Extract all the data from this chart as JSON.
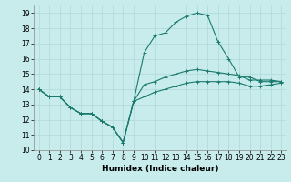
{
  "xlabel": "Humidex (Indice chaleur)",
  "background_color": "#c8ecec",
  "grid_color": "#b0d8d8",
  "line_color": "#1a7a6e",
  "x_values": [
    0,
    1,
    2,
    3,
    4,
    5,
    6,
    7,
    8,
    9,
    10,
    11,
    12,
    13,
    14,
    15,
    16,
    17,
    18,
    19,
    20,
    21,
    22,
    23
  ],
  "line_max": [
    14.0,
    13.5,
    13.5,
    12.8,
    12.4,
    12.4,
    11.9,
    11.5,
    10.5,
    13.2,
    16.4,
    17.5,
    17.7,
    18.4,
    18.8,
    19.0,
    18.85,
    17.1,
    16.0,
    14.8,
    14.8,
    14.5,
    14.5,
    14.5
  ],
  "line_mid": [
    14.0,
    13.5,
    13.5,
    12.8,
    12.4,
    12.4,
    11.9,
    11.5,
    10.5,
    13.2,
    14.3,
    14.5,
    14.8,
    15.0,
    15.2,
    15.3,
    15.2,
    15.1,
    15.0,
    14.9,
    14.6,
    14.6,
    14.6,
    14.5
  ],
  "line_min": [
    14.0,
    13.5,
    13.5,
    12.8,
    12.4,
    12.4,
    11.9,
    11.5,
    10.5,
    13.2,
    13.5,
    13.8,
    14.0,
    14.2,
    14.4,
    14.5,
    14.5,
    14.5,
    14.5,
    14.4,
    14.2,
    14.2,
    14.3,
    14.4
  ],
  "ylim": [
    10,
    19.5
  ],
  "xlim": [
    -0.5,
    23.5
  ],
  "yticks": [
    10,
    11,
    12,
    13,
    14,
    15,
    16,
    17,
    18,
    19
  ],
  "xticks": [
    0,
    1,
    2,
    3,
    4,
    5,
    6,
    7,
    8,
    9,
    10,
    11,
    12,
    13,
    14,
    15,
    16,
    17,
    18,
    19,
    20,
    21,
    22,
    23
  ],
  "tick_fontsize": 5.5,
  "xlabel_fontsize": 6.5
}
